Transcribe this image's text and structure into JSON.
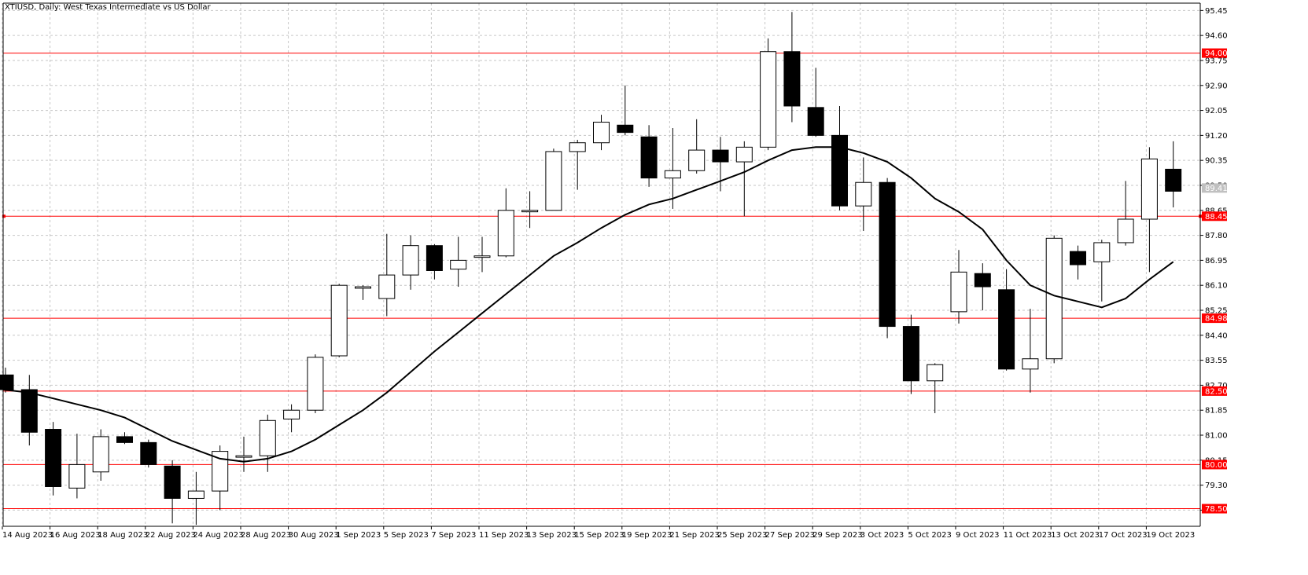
{
  "chart_data": {
    "type": "candlestick",
    "title": "XTIUSD, Daily:  West Texas Intermediate vs US Dollar",
    "grid": true,
    "ylim": [
      77.9,
      95.7
    ],
    "y_ticks": [
      "95.45",
      "94.60",
      "93.75",
      "92.90",
      "92.05",
      "91.20",
      "90.35",
      "89.50",
      "88.65",
      "87.80",
      "86.95",
      "86.10",
      "85.25",
      "84.40",
      "83.55",
      "82.70",
      "81.85",
      "81.00",
      "80.15",
      "79.30",
      "78.45"
    ],
    "x_tick_labels": [
      {
        "index": 0,
        "label": "14 Aug 2023"
      },
      {
        "index": 2,
        "label": "16 Aug 2023"
      },
      {
        "index": 4,
        "label": "18 Aug 2023"
      },
      {
        "index": 6,
        "label": "22 Aug 2023"
      },
      {
        "index": 8,
        "label": "24 Aug 2023"
      },
      {
        "index": 10,
        "label": "28 Aug 2023"
      },
      {
        "index": 12,
        "label": "30 Aug 2023"
      },
      {
        "index": 14,
        "label": "1 Sep 2023"
      },
      {
        "index": 16,
        "label": "5 Sep 2023"
      },
      {
        "index": 18,
        "label": "7 Sep 2023"
      },
      {
        "index": 20,
        "label": "11 Sep 2023"
      },
      {
        "index": 22,
        "label": "13 Sep 2023"
      },
      {
        "index": 24,
        "label": "15 Sep 2023"
      },
      {
        "index": 26,
        "label": "19 Sep 2023"
      },
      {
        "index": 28,
        "label": "21 Sep 2023"
      },
      {
        "index": 30,
        "label": "25 Sep 2023"
      },
      {
        "index": 32,
        "label": "27 Sep 2023"
      },
      {
        "index": 34,
        "label": "29 Sep 2023"
      },
      {
        "index": 36,
        "label": "3 Oct 2023"
      },
      {
        "index": 38,
        "label": "5 Oct 2023"
      },
      {
        "index": 40,
        "label": "9 Oct 2023"
      },
      {
        "index": 42,
        "label": "11 Oct 2023"
      },
      {
        "index": 44,
        "label": "13 Oct 2023"
      },
      {
        "index": 46,
        "label": "17 Oct 2023"
      },
      {
        "index": 48,
        "label": "19 Oct 2023"
      }
    ],
    "candles": [
      {
        "o": 83.05,
        "h": 83.3,
        "l": 82.45,
        "c": 82.55
      },
      {
        "o": 82.55,
        "h": 83.05,
        "l": 80.65,
        "c": 81.1
      },
      {
        "o": 81.2,
        "h": 81.45,
        "l": 78.95,
        "c": 79.25
      },
      {
        "o": 79.2,
        "h": 81.05,
        "l": 78.85,
        "c": 80.0
      },
      {
        "o": 79.75,
        "h": 81.2,
        "l": 79.45,
        "c": 80.95
      },
      {
        "o": 80.95,
        "h": 81.1,
        "l": 80.7,
        "c": 80.75
      },
      {
        "o": 80.75,
        "h": 80.85,
        "l": 79.9,
        "c": 80.0
      },
      {
        "o": 79.95,
        "h": 80.15,
        "l": 78.0,
        "c": 78.85
      },
      {
        "o": 78.85,
        "h": 79.75,
        "l": 77.95,
        "c": 79.1
      },
      {
        "o": 79.1,
        "h": 80.65,
        "l": 78.45,
        "c": 80.45
      },
      {
        "o": 80.25,
        "h": 80.95,
        "l": 79.75,
        "c": 80.3
      },
      {
        "o": 80.3,
        "h": 81.7,
        "l": 79.75,
        "c": 81.5
      },
      {
        "o": 81.55,
        "h": 82.05,
        "l": 81.1,
        "c": 81.85
      },
      {
        "o": 81.85,
        "h": 83.75,
        "l": 81.75,
        "c": 83.65
      },
      {
        "o": 83.7,
        "h": 86.15,
        "l": 83.65,
        "c": 86.1
      },
      {
        "o": 86.0,
        "h": 86.1,
        "l": 85.6,
        "c": 86.05
      },
      {
        "o": 85.65,
        "h": 87.85,
        "l": 85.05,
        "c": 86.45
      },
      {
        "o": 86.45,
        "h": 87.8,
        "l": 85.95,
        "c": 87.45
      },
      {
        "o": 87.45,
        "h": 87.5,
        "l": 86.3,
        "c": 86.6
      },
      {
        "o": 86.65,
        "h": 87.75,
        "l": 86.05,
        "c": 86.95
      },
      {
        "o": 87.05,
        "h": 87.75,
        "l": 86.55,
        "c": 87.1
      },
      {
        "o": 87.1,
        "h": 89.4,
        "l": 87.05,
        "c": 88.65
      },
      {
        "o": 88.6,
        "h": 89.3,
        "l": 88.05,
        "c": 88.65
      },
      {
        "o": 88.65,
        "h": 90.75,
        "l": 88.65,
        "c": 90.65
      },
      {
        "o": 90.65,
        "h": 91.05,
        "l": 89.35,
        "c": 90.95
      },
      {
        "o": 90.95,
        "h": 91.9,
        "l": 90.7,
        "c": 91.65
      },
      {
        "o": 91.55,
        "h": 92.9,
        "l": 91.2,
        "c": 91.3
      },
      {
        "o": 91.15,
        "h": 91.55,
        "l": 89.45,
        "c": 89.75
      },
      {
        "o": 89.75,
        "h": 91.45,
        "l": 88.7,
        "c": 90.0
      },
      {
        "o": 90.0,
        "h": 91.75,
        "l": 89.9,
        "c": 90.7
      },
      {
        "o": 90.7,
        "h": 91.15,
        "l": 89.3,
        "c": 90.3
      },
      {
        "o": 90.3,
        "h": 91.0,
        "l": 88.45,
        "c": 90.8
      },
      {
        "o": 90.8,
        "h": 94.5,
        "l": 90.7,
        "c": 94.05
      },
      {
        "o": 94.05,
        "h": 95.4,
        "l": 91.65,
        "c": 92.2
      },
      {
        "o": 92.15,
        "h": 93.5,
        "l": 91.15,
        "c": 91.2
      },
      {
        "o": 91.2,
        "h": 92.2,
        "l": 88.65,
        "c": 88.8
      },
      {
        "o": 88.8,
        "h": 90.45,
        "l": 87.95,
        "c": 89.6
      },
      {
        "o": 89.6,
        "h": 89.75,
        "l": 84.3,
        "c": 84.7
      },
      {
        "o": 84.7,
        "h": 85.1,
        "l": 82.4,
        "c": 82.85
      },
      {
        "o": 82.85,
        "h": 83.45,
        "l": 81.75,
        "c": 83.4
      },
      {
        "o": 85.2,
        "h": 87.3,
        "l": 84.8,
        "c": 86.55
      },
      {
        "o": 86.5,
        "h": 86.85,
        "l": 85.25,
        "c": 86.05
      },
      {
        "o": 85.95,
        "h": 86.65,
        "l": 83.2,
        "c": 83.25
      },
      {
        "o": 83.25,
        "h": 85.3,
        "l": 82.45,
        "c": 83.6
      },
      {
        "o": 83.6,
        "h": 87.8,
        "l": 83.45,
        "c": 87.7
      },
      {
        "o": 87.25,
        "h": 87.45,
        "l": 86.3,
        "c": 86.8
      },
      {
        "o": 86.9,
        "h": 87.65,
        "l": 85.55,
        "c": 87.55
      },
      {
        "o": 87.55,
        "h": 89.65,
        "l": 87.45,
        "c": 88.35
      },
      {
        "o": 88.35,
        "h": 90.8,
        "l": 86.55,
        "c": 90.4
      },
      {
        "o": 90.05,
        "h": 91.0,
        "l": 88.75,
        "c": 89.3
      }
    ],
    "moving_average": [
      82.55,
      82.45,
      82.25,
      82.05,
      81.85,
      81.6,
      81.2,
      80.8,
      80.5,
      80.2,
      80.1,
      80.2,
      80.45,
      80.85,
      81.35,
      81.85,
      82.45,
      83.15,
      83.85,
      84.5,
      85.15,
      85.8,
      86.45,
      87.1,
      87.55,
      88.05,
      88.5,
      88.85,
      89.05,
      89.35,
      89.65,
      89.95,
      90.35,
      90.7,
      90.8,
      90.8,
      90.6,
      90.3,
      89.75,
      89.05,
      88.6,
      88.0,
      86.95,
      86.1,
      85.75,
      85.55,
      85.35,
      85.65,
      86.3,
      86.9
    ],
    "horizontal_levels": [
      {
        "value": 94.0,
        "label": "94.00"
      },
      {
        "value": 88.45,
        "label": "88.45"
      },
      {
        "value": 84.98,
        "label": "84.98"
      },
      {
        "value": 82.5,
        "label": "82.50"
      },
      {
        "value": 80.0,
        "label": "80.00"
      },
      {
        "value": 78.5,
        "label": "78.50"
      }
    ],
    "current_price": {
      "value": 89.41,
      "label": "89.41"
    },
    "colors": {
      "grid": "#c6c6c6",
      "level": "#ff0000",
      "candle": "#000000",
      "moving_average": "#000000",
      "price_tag": "#c0c0c0"
    }
  }
}
